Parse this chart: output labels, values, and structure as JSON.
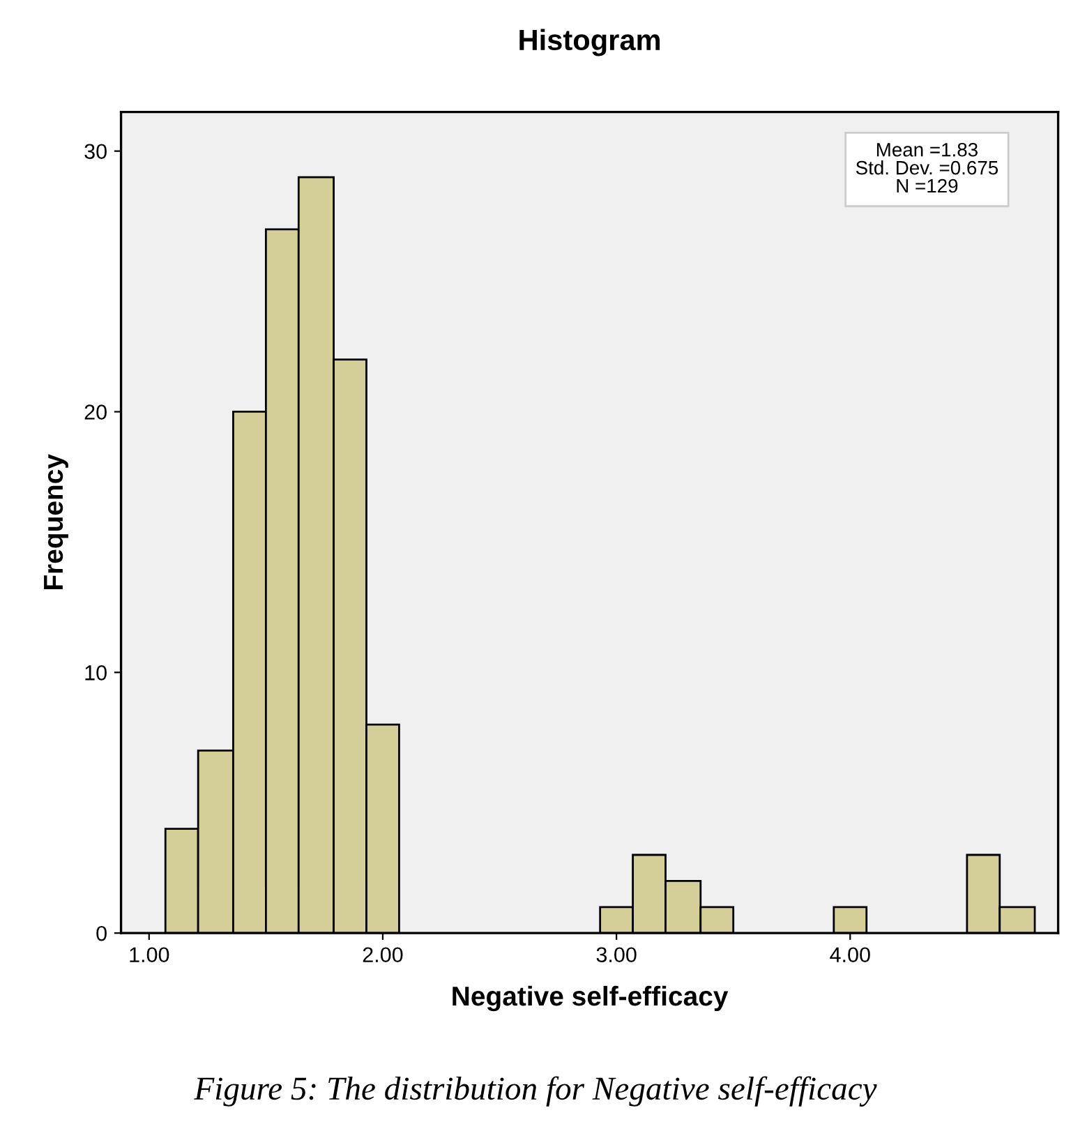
{
  "chart_data": {
    "type": "histogram",
    "title": "Histogram",
    "xlabel": "Negative self-efficacy",
    "ylabel": "Frequency",
    "bins": [
      1.07,
      1.21,
      1.36,
      1.5,
      1.64,
      1.79,
      1.93,
      2.07,
      2.93,
      3.07,
      3.21,
      3.36,
      3.5,
      3.93,
      4.07,
      4.5,
      4.64,
      4.79
    ],
    "values": [
      4,
      7,
      20,
      27,
      29,
      22,
      8,
      0,
      1,
      3,
      2,
      1,
      0,
      1,
      0,
      3,
      1
    ],
    "color": "#d4cf98",
    "xlim": [
      0.88,
      4.89
    ],
    "ylim": [
      0,
      31.5
    ],
    "xticks": [
      {
        "value": 1,
        "label": "1.00"
      },
      {
        "value": 2,
        "label": "2.00"
      },
      {
        "value": 3,
        "label": "3.00"
      },
      {
        "value": 4,
        "label": "4.00"
      }
    ],
    "yticks": [
      0,
      10,
      20,
      30
    ],
    "grid": false,
    "annotations": [
      "Mean =1.83\nStd. Dev. =0.675\nN =129",
      "Figure 5: The distribution for Negative self-efficacy"
    ]
  }
}
